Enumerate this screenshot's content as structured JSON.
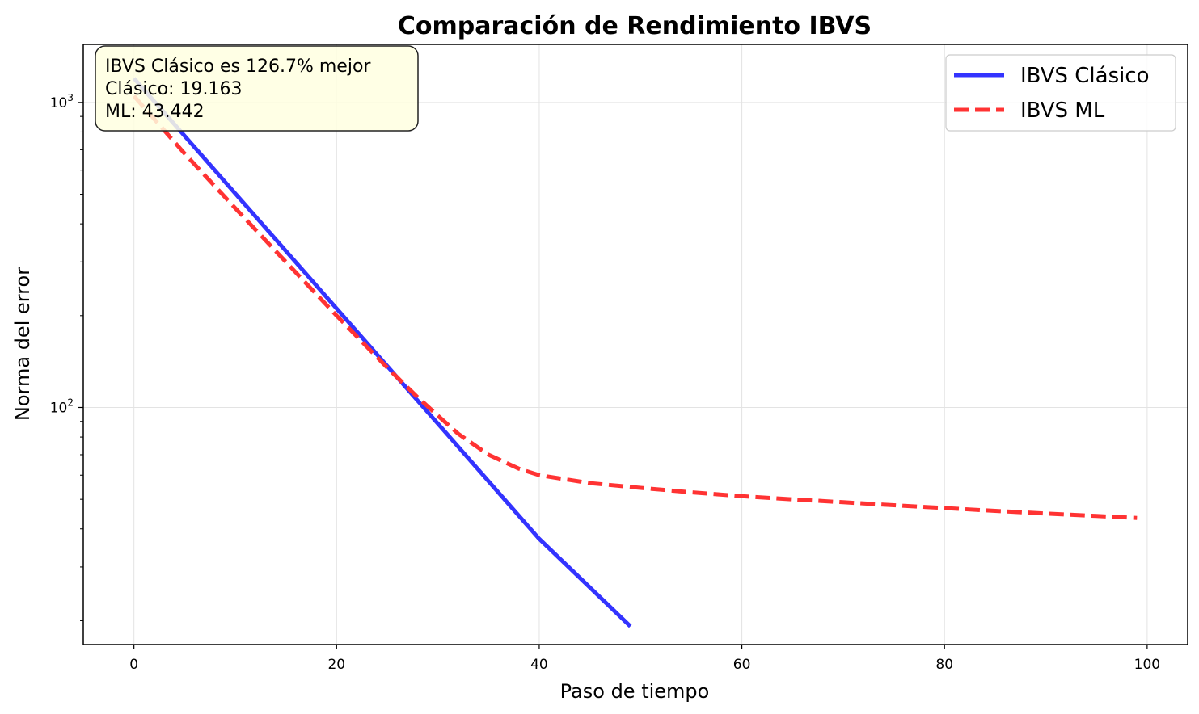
{
  "chart_data": {
    "type": "line",
    "title": "Comparación de Rendimiento IBVS",
    "xlabel": "Paso de tiempo",
    "ylabel": "Norma del error",
    "xlim": [
      -5,
      104
    ],
    "ylim": [
      16.7,
      1550
    ],
    "yscale": "log",
    "grid": true,
    "legend_position": "top-right",
    "x_ticks": [
      0,
      20,
      40,
      60,
      80,
      100
    ],
    "y_ticks": [
      {
        "value": 100,
        "base": "10",
        "exp": "2"
      },
      {
        "value": 1000,
        "base": "10",
        "exp": "3"
      }
    ],
    "series": [
      {
        "name": "IBVS Clásico",
        "color": "#3333ff",
        "dash": "solid",
        "x": [
          0,
          10,
          20,
          30,
          40,
          49
        ],
        "y": [
          1200,
          503,
          211,
          88.5,
          37.1,
          19.163
        ]
      },
      {
        "name": "IBVS ML",
        "color": "#ff3333",
        "dash": "dashed",
        "x": [
          0,
          5,
          10,
          15,
          20,
          25,
          28,
          30,
          32,
          35,
          38,
          40,
          45,
          50,
          55,
          60,
          65,
          70,
          75,
          80,
          85,
          90,
          95,
          99
        ],
        "y": [
          1050,
          680,
          450,
          300,
          200,
          135,
          108,
          94,
          82,
          70,
          63,
          60,
          56.5,
          54.5,
          52.7,
          51.2,
          50,
          48.9,
          47.8,
          46.8,
          45.8,
          44.9,
          44.1,
          43.442
        ]
      }
    ],
    "annotation": {
      "lines": [
        "IBVS Clásico es 126.7% mejor",
        "Clásico: 19.163",
        "ML: 43.442"
      ],
      "background": "#ffffe0"
    }
  }
}
